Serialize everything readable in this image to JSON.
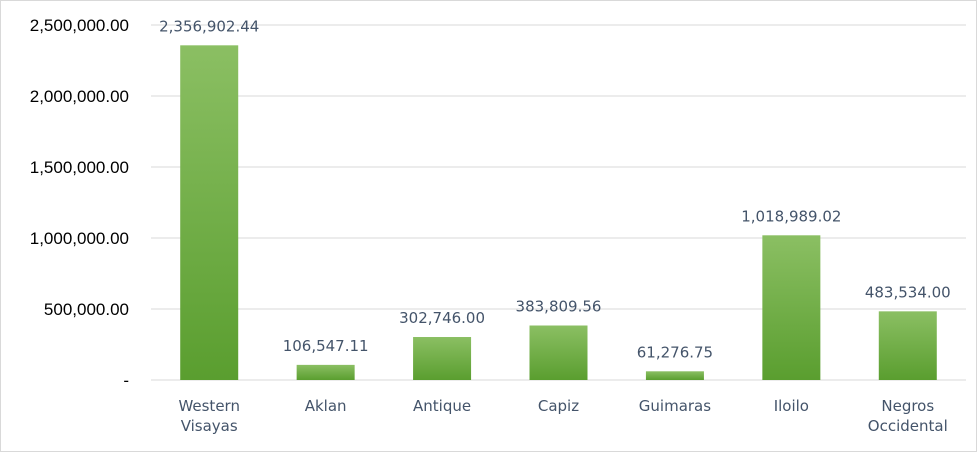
{
  "chart_data": {
    "type": "bar",
    "categories": [
      [
        "Western",
        "Visayas"
      ],
      [
        "Aklan"
      ],
      [
        "Antique"
      ],
      [
        "Capiz"
      ],
      [
        "Guimaras"
      ],
      [
        "Iloilo"
      ],
      [
        "Negros",
        "Occidental"
      ]
    ],
    "values": [
      2356902.44,
      106547.11,
      302746.0,
      383809.56,
      61276.75,
      1018989.02,
      483534.0
    ],
    "data_labels": [
      "2,356,902.44",
      "106,547.11",
      "302,746.00",
      "383,809.56",
      "61,276.75",
      "1,018,989.02",
      "483,534.00"
    ],
    "yticks": [
      0,
      500000,
      1000000,
      1500000,
      2000000,
      2500000
    ],
    "ytick_labels": [
      "-",
      "500,000.00",
      "1,000,000.00",
      "1,500,000.00",
      "2,000,000.00",
      "2,500,000.00"
    ],
    "ylim": [
      0,
      2500000
    ],
    "title": "",
    "xlabel": "",
    "ylabel": "",
    "grid": true,
    "legend": "none",
    "colors": {
      "bar_top": "#8bbf63",
      "bar_bottom": "#5a9e2f",
      "grid": "#d9d9d9",
      "label": "#44546a",
      "axis_text": "#000000"
    }
  }
}
